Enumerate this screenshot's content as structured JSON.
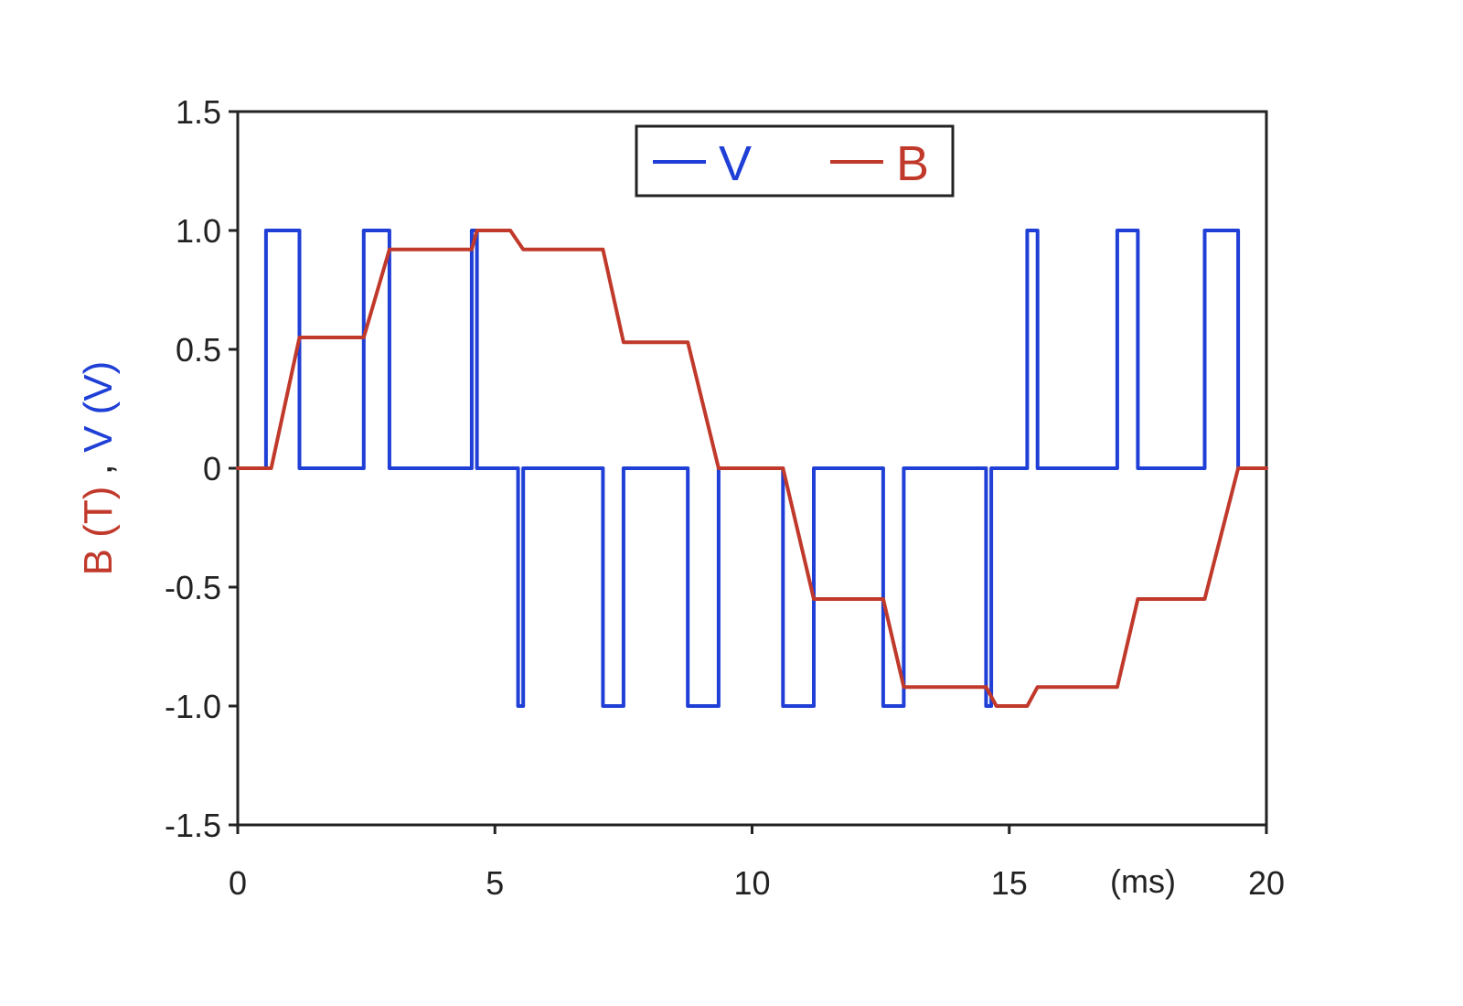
{
  "chart_data": {
    "type": "line",
    "title": "",
    "xlabel": "",
    "x_unit_label": "(ms)",
    "ylabel_parts": [
      {
        "text": "B (T)",
        "color": "#c0392b"
      },
      {
        "text": ", ",
        "color": "#222222"
      },
      {
        "text": "V (V)",
        "color": "#1f3fd6"
      }
    ],
    "xlim": [
      0,
      20
    ],
    "ylim": [
      -1.5,
      1.5
    ],
    "x_ticks": [
      0,
      5,
      10,
      15,
      20
    ],
    "x_tick_labels": [
      "0",
      "5",
      "10",
      "15",
      "20"
    ],
    "y_ticks": [
      1.5,
      1.0,
      0.5,
      0,
      -0.5,
      -1.0,
      -1.5
    ],
    "y_tick_labels": [
      "1.5",
      "1.0",
      "0.5",
      "0",
      "-0.5",
      "-1.0",
      "-1.5"
    ],
    "grid": false,
    "legend_position": "top-center",
    "series": [
      {
        "name": "V",
        "color": "#1f3fd6",
        "x": [
          0,
          0.55,
          0.55,
          1.2,
          1.2,
          2.45,
          2.45,
          2.95,
          2.95,
          4.55,
          4.55,
          4.65,
          4.65,
          5.45,
          5.45,
          5.55,
          5.55,
          7.1,
          7.1,
          7.5,
          7.5,
          8.75,
          8.75,
          9.35,
          9.35,
          10.6,
          10.6,
          11.2,
          11.2,
          12.55,
          12.55,
          12.95,
          12.95,
          14.55,
          14.55,
          14.65,
          14.65,
          15.35,
          15.35,
          15.55,
          15.55,
          17.1,
          17.1,
          17.5,
          17.5,
          18.8,
          18.8,
          19.45,
          19.45,
          20
        ],
        "y": [
          0,
          0,
          1,
          1,
          0,
          0,
          1,
          1,
          0,
          0,
          1,
          1,
          0,
          0,
          -1,
          -1,
          0,
          0,
          -1,
          -1,
          0,
          0,
          -1,
          -1,
          0,
          0,
          -1,
          -1,
          0,
          0,
          -1,
          -1,
          0,
          0,
          -1,
          -1,
          0,
          0,
          1,
          1,
          0,
          0,
          1,
          1,
          0,
          0,
          1,
          1,
          0,
          0
        ]
      },
      {
        "name": "B",
        "color": "#c0392b",
        "x": [
          0,
          0.65,
          1.2,
          2.45,
          2.95,
          4.55,
          4.65,
          5.3,
          5.55,
          7.1,
          7.5,
          8.75,
          9.35,
          10.6,
          11.2,
          12.55,
          12.95,
          14.55,
          14.75,
          15.35,
          15.55,
          17.1,
          17.5,
          18.8,
          19.45,
          20
        ],
        "y": [
          0,
          0,
          0.55,
          0.55,
          0.92,
          0.92,
          1.0,
          1.0,
          0.92,
          0.92,
          0.53,
          0.53,
          0,
          0,
          -0.55,
          -0.55,
          -0.92,
          -0.92,
          -1.0,
          -1.0,
          -0.92,
          -0.92,
          -0.55,
          -0.55,
          0,
          0
        ]
      }
    ]
  }
}
